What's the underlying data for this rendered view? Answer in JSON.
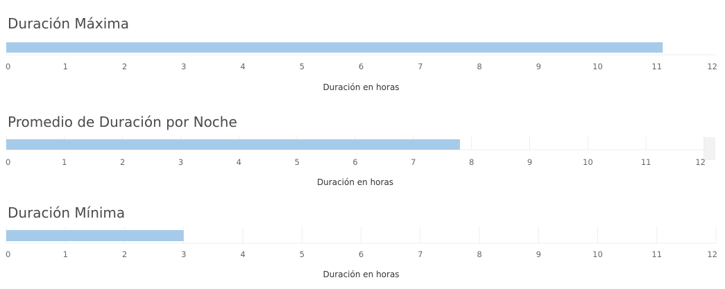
{
  "chart_data": [
    {
      "type": "bar",
      "orientation": "horizontal",
      "title": "Duración Máxima",
      "xlabel": "Duración en horas",
      "xlim": [
        0,
        12
      ],
      "ticks": [
        "0",
        "1",
        "2",
        "3",
        "4",
        "5",
        "6",
        "7",
        "8",
        "9",
        "10",
        "11",
        "12"
      ],
      "values": [
        11.1
      ],
      "bar_color": "#a6cbea",
      "grid": false
    },
    {
      "type": "bar",
      "orientation": "horizontal",
      "title": "Promedio de Duración por Noche",
      "xlabel": "Duración en horas",
      "xlim": [
        0,
        12
      ],
      "ticks": [
        "0",
        "1",
        "2",
        "3",
        "4",
        "5",
        "6",
        "7",
        "8",
        "9",
        "10",
        "11",
        "12"
      ],
      "values": [
        7.8
      ],
      "bar_color": "#a6cbea",
      "grid": true
    },
    {
      "type": "bar",
      "orientation": "horizontal",
      "title": "Duración Mínima",
      "xlabel": "Duración en horas",
      "xlim": [
        0,
        12
      ],
      "ticks": [
        "0",
        "1",
        "2",
        "3",
        "4",
        "5",
        "6",
        "7",
        "8",
        "9",
        "10",
        "11",
        "12"
      ],
      "values": [
        3.0
      ],
      "bar_color": "#a6cbea",
      "grid": true
    }
  ]
}
